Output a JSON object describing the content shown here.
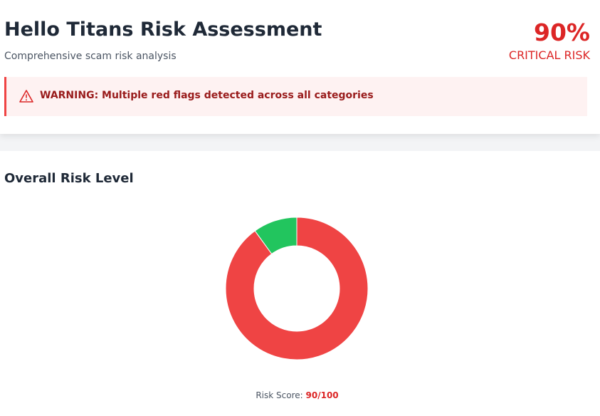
{
  "header": {
    "title": "Hello Titans Risk Assessment",
    "subtitle": "Comprehensive scam risk analysis",
    "score": "90%",
    "level": "CRITICAL RISK",
    "warning": "WARNING: Multiple red flags detected across all categories"
  },
  "chart_data": {
    "type": "donut",
    "title": "Overall Risk Level",
    "categories": [
      null,
      null
    ],
    "values": [
      90,
      10
    ],
    "colors": [
      "#ef4444",
      "#22c55e"
    ],
    "caption_label": "Risk Score:",
    "caption_value": "90/100"
  }
}
